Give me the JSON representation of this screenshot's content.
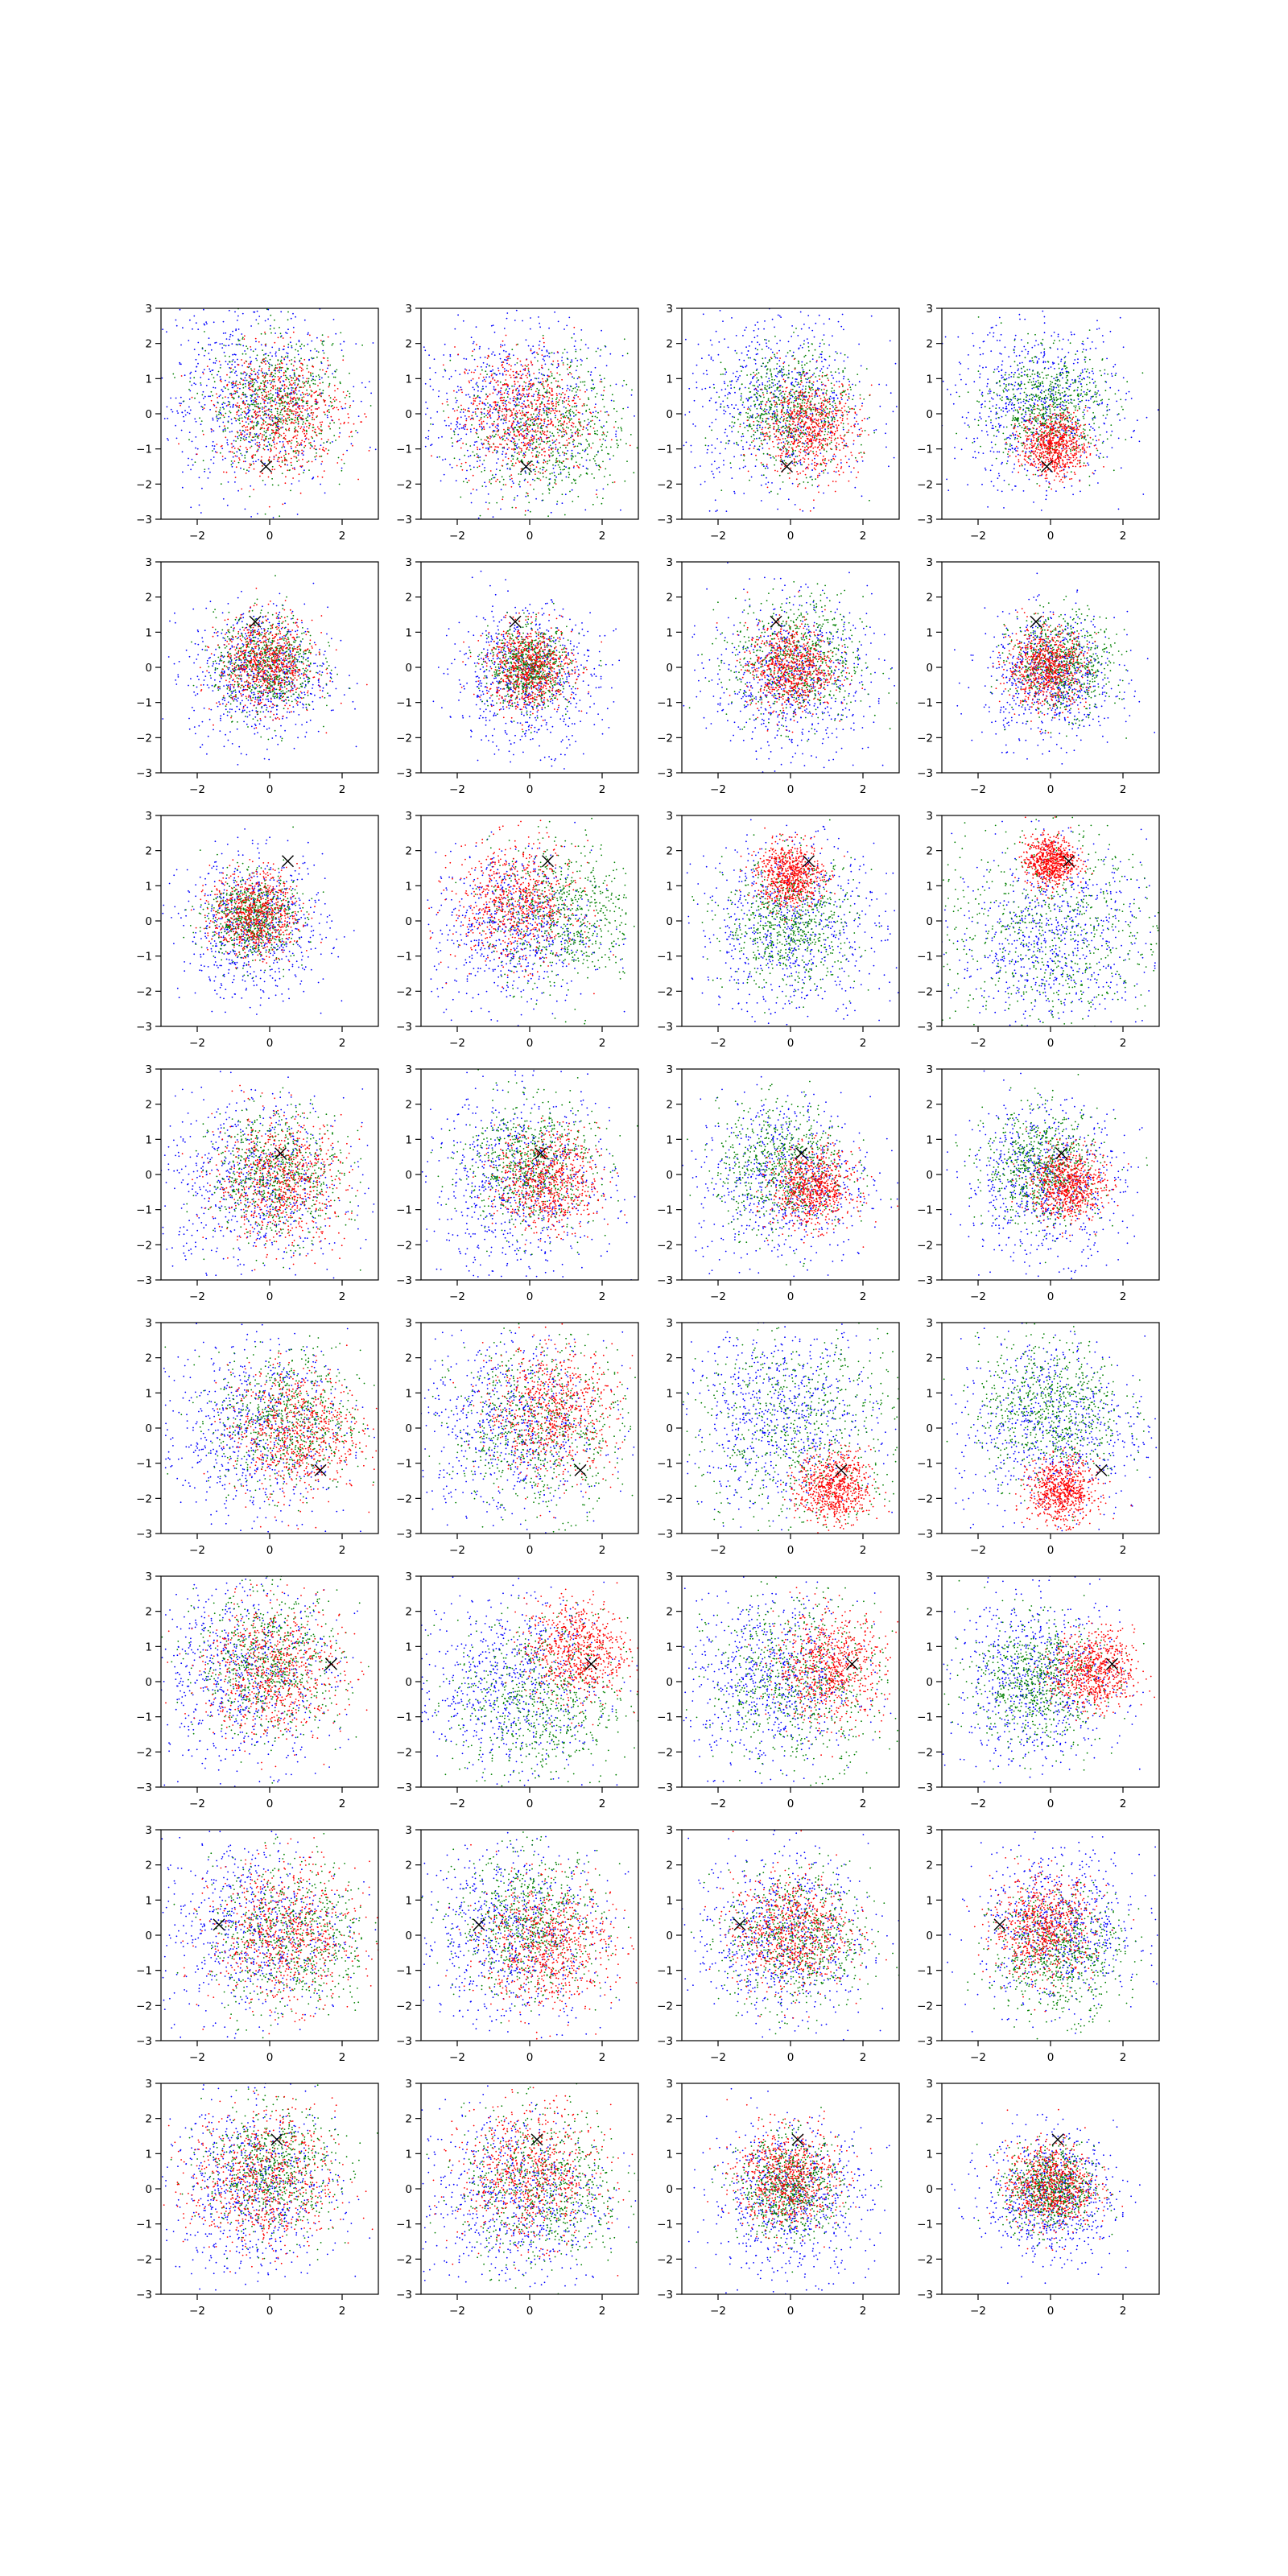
{
  "chart_data": {
    "type": "scatter",
    "grid_shape": [
      8,
      4
    ],
    "grid": false,
    "legend": "none",
    "xlim": [
      -3,
      3
    ],
    "ylim": [
      -3,
      3
    ],
    "xticks": [
      -2,
      0,
      2
    ],
    "yticks": [
      -3,
      -2,
      -1,
      0,
      1,
      2,
      3
    ],
    "xtick_labels": [
      "−2",
      "0",
      "2"
    ],
    "ytick_labels": [
      "−3",
      "−2",
      "−1",
      "0",
      "1",
      "2",
      "3"
    ],
    "series_colors": {
      "blue": "#0000ff",
      "green": "#008000",
      "red": "#ff0000"
    },
    "marker_color": "#000000",
    "panels": [
      {
        "marker": [
          -0.1,
          -1.5
        ],
        "blue": [
          -0.6,
          0.5,
          1.3
        ],
        "green": [
          0.2,
          0.3,
          0.95
        ],
        "red": [
          0.3,
          0.0,
          0.9
        ]
      },
      {
        "marker": [
          -0.1,
          -1.5
        ],
        "blue": [
          -0.5,
          0.2,
          1.3
        ],
        "green": [
          0.5,
          -0.5,
          1.1
        ],
        "red": [
          -0.2,
          0.0,
          0.9
        ]
      },
      {
        "marker": [
          -0.1,
          -1.5
        ],
        "blue": [
          -0.3,
          0.3,
          1.3
        ],
        "green": [
          0.0,
          0.1,
          0.85
        ],
        "red": [
          0.5,
          -0.4,
          0.7
        ]
      },
      {
        "marker": [
          -0.1,
          -1.5
        ],
        "blue": [
          -0.3,
          0.2,
          1.2
        ],
        "green": [
          -0.1,
          0.2,
          0.8
        ],
        "red": [
          0.1,
          -0.9,
          0.45
        ]
      },
      {
        "marker": [
          -0.4,
          1.3
        ],
        "blue": [
          -0.3,
          -0.2,
          0.95
        ],
        "green": [
          -0.1,
          0.1,
          0.7
        ],
        "red": [
          -0.1,
          0.1,
          0.65
        ]
      },
      {
        "marker": [
          -0.4,
          1.3
        ],
        "blue": [
          -0.1,
          -0.3,
          1.0
        ],
        "green": [
          0.0,
          0.0,
          0.55
        ],
        "red": [
          0.0,
          0.0,
          0.6
        ]
      },
      {
        "marker": [
          -0.4,
          1.3
        ],
        "blue": [
          0.0,
          -0.3,
          1.1
        ],
        "green": [
          0.2,
          0.2,
          0.9
        ],
        "red": [
          0.0,
          0.0,
          0.6
        ]
      },
      {
        "marker": [
          -0.4,
          1.3
        ],
        "blue": [
          0.0,
          -0.3,
          0.9
        ],
        "green": [
          0.3,
          0.1,
          0.7
        ],
        "red": [
          -0.1,
          0.0,
          0.55
        ]
      },
      {
        "marker": [
          0.5,
          1.7
        ],
        "blue": [
          -0.4,
          -0.2,
          1.0
        ],
        "green": [
          -0.5,
          0.1,
          0.6
        ],
        "red": [
          -0.4,
          0.2,
          0.6
        ]
      },
      {
        "marker": [
          0.5,
          1.7
        ],
        "blue": [
          -0.5,
          -0.2,
          1.1
        ],
        "green": [
          0.9,
          0.2,
          1.0
        ],
        "red": [
          -0.4,
          0.5,
          0.85
        ]
      },
      {
        "marker": [
          0.5,
          1.7
        ],
        "blue": [
          0.0,
          -0.2,
          1.3
        ],
        "green": [
          0.0,
          -0.1,
          0.9
        ],
        "red": [
          0.0,
          1.3,
          0.45
        ]
      },
      {
        "marker": [
          0.5,
          1.7
        ],
        "blue": [
          0.0,
          -0.5,
          1.3
        ],
        "green": [
          0.0,
          -0.3,
          1.6
        ],
        "red": [
          0.0,
          1.7,
          0.35
        ]
      },
      {
        "marker": [
          0.3,
          0.6
        ],
        "blue": [
          -0.5,
          -0.3,
          1.3
        ],
        "green": [
          0.2,
          0.0,
          0.9
        ],
        "red": [
          0.3,
          -0.2,
          0.9
        ]
      },
      {
        "marker": [
          0.3,
          0.6
        ],
        "blue": [
          -0.3,
          -0.3,
          1.3
        ],
        "green": [
          0.0,
          0.3,
          0.9
        ],
        "red": [
          0.5,
          -0.2,
          0.7
        ]
      },
      {
        "marker": [
          0.3,
          0.6
        ],
        "blue": [
          -0.2,
          -0.2,
          1.2
        ],
        "green": [
          -0.2,
          0.2,
          0.9
        ],
        "red": [
          0.6,
          -0.4,
          0.55
        ]
      },
      {
        "marker": [
          0.3,
          0.6
        ],
        "blue": [
          -0.2,
          -0.2,
          1.1
        ],
        "green": [
          -0.2,
          0.2,
          0.8
        ],
        "red": [
          0.5,
          -0.3,
          0.5
        ]
      },
      {
        "marker": [
          1.4,
          -1.2
        ],
        "blue": [
          -0.5,
          0.0,
          1.3
        ],
        "green": [
          0.5,
          0.2,
          1.0
        ],
        "red": [
          0.7,
          -0.1,
          0.9
        ]
      },
      {
        "marker": [
          1.4,
          -1.2
        ],
        "blue": [
          -0.5,
          0.0,
          1.3
        ],
        "green": [
          0.3,
          0.0,
          1.2
        ],
        "red": [
          0.6,
          0.5,
          0.9
        ]
      },
      {
        "marker": [
          1.4,
          -1.2
        ],
        "blue": [
          -0.3,
          0.3,
          1.3
        ],
        "green": [
          0.3,
          0.0,
          1.6
        ],
        "red": [
          1.2,
          -1.7,
          0.5
        ]
      },
      {
        "marker": [
          1.4,
          -1.2
        ],
        "blue": [
          0.0,
          0.0,
          1.3
        ],
        "green": [
          0.0,
          0.5,
          1.0
        ],
        "red": [
          0.3,
          -1.8,
          0.45
        ]
      },
      {
        "marker": [
          1.7,
          0.5
        ],
        "blue": [
          -0.8,
          0.2,
          1.3
        ],
        "green": [
          0.0,
          0.5,
          1.0
        ],
        "red": [
          0.1,
          0.3,
          0.95
        ]
      },
      {
        "marker": [
          1.7,
          0.5
        ],
        "blue": [
          -0.6,
          0.0,
          1.3
        ],
        "green": [
          0.3,
          -0.6,
          1.2
        ],
        "red": [
          1.3,
          0.9,
          0.7
        ]
      },
      {
        "marker": [
          1.7,
          0.5
        ],
        "blue": [
          -0.5,
          0.0,
          1.2
        ],
        "green": [
          0.2,
          0.0,
          1.2
        ],
        "red": [
          1.1,
          0.4,
          0.75
        ]
      },
      {
        "marker": [
          1.7,
          0.5
        ],
        "blue": [
          -0.4,
          0.0,
          1.2
        ],
        "green": [
          -0.4,
          0.0,
          0.9
        ],
        "red": [
          1.2,
          0.3,
          0.55
        ]
      },
      {
        "marker": [
          -1.4,
          0.3
        ],
        "blue": [
          -0.5,
          0.2,
          1.3
        ],
        "green": [
          0.6,
          -0.1,
          1.1
        ],
        "red": [
          0.4,
          0.0,
          1.0
        ]
      },
      {
        "marker": [
          -1.4,
          0.3
        ],
        "blue": [
          -0.5,
          0.0,
          1.3
        ],
        "green": [
          0.0,
          0.3,
          1.0
        ],
        "red": [
          0.5,
          -0.3,
          0.9
        ]
      },
      {
        "marker": [
          -1.4,
          0.3
        ],
        "blue": [
          -0.3,
          0.0,
          1.2
        ],
        "green": [
          0.2,
          -0.1,
          1.0
        ],
        "red": [
          0.0,
          0.1,
          0.8
        ]
      },
      {
        "marker": [
          -1.4,
          0.3
        ],
        "blue": [
          0.3,
          0.2,
          1.1
        ],
        "green": [
          0.2,
          -0.5,
          0.9
        ],
        "red": [
          -0.2,
          0.2,
          0.7
        ]
      },
      {
        "marker": [
          0.2,
          1.4
        ],
        "blue": [
          -0.5,
          0.0,
          1.2
        ],
        "green": [
          0.0,
          0.5,
          0.9
        ],
        "red": [
          -0.2,
          0.2,
          1.0
        ]
      },
      {
        "marker": [
          0.2,
          1.4
        ],
        "blue": [
          -0.5,
          -0.3,
          1.3
        ],
        "green": [
          0.4,
          0.0,
          1.1
        ],
        "red": [
          0.0,
          0.4,
          0.95
        ]
      },
      {
        "marker": [
          0.2,
          1.4
        ],
        "blue": [
          0.0,
          -0.3,
          1.1
        ],
        "green": [
          0.0,
          0.0,
          0.7
        ],
        "red": [
          -0.1,
          0.3,
          0.7
        ]
      },
      {
        "marker": [
          0.2,
          1.4
        ],
        "blue": [
          0.0,
          -0.2,
          0.9
        ],
        "green": [
          0.0,
          0.0,
          0.6
        ],
        "red": [
          0.0,
          0.1,
          0.6
        ]
      }
    ]
  }
}
